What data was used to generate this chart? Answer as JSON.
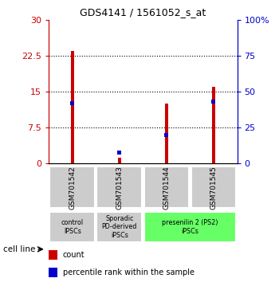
{
  "title": "GDS4141 / 1561052_s_at",
  "samples": [
    "GSM701542",
    "GSM701543",
    "GSM701544",
    "GSM701545"
  ],
  "count_values": [
    23.5,
    1.2,
    12.5,
    16.0
  ],
  "percentile_values": [
    42.0,
    7.5,
    20.0,
    43.0
  ],
  "left_ylim": [
    0,
    30
  ],
  "right_ylim": [
    0,
    100
  ],
  "left_yticks": [
    0,
    7.5,
    15,
    22.5,
    30
  ],
  "right_yticks": [
    0,
    25,
    50,
    75,
    100
  ],
  "left_yticklabels": [
    "0",
    "7.5",
    "15",
    "22.5",
    "30"
  ],
  "right_yticklabels": [
    "0",
    "25",
    "50",
    "75",
    "100%"
  ],
  "bar_width": 0.07,
  "count_color": "#cc0000",
  "percentile_color": "#0000cc",
  "bg_color": "#ffffff",
  "cell_line_groups": [
    {
      "label": "control\nIPSCs",
      "start": 0,
      "end": 0,
      "color": "#cccccc"
    },
    {
      "label": "Sporadic\nPD-derived\niPSCs",
      "start": 1,
      "end": 1,
      "color": "#cccccc"
    },
    {
      "label": "presenilin 2 (PS2)\niPSCs",
      "start": 2,
      "end": 3,
      "color": "#66ff66"
    }
  ],
  "legend_count_label": "count",
  "legend_pct_label": "percentile rank within the sample",
  "cell_line_text": "cell line",
  "left_axis_color": "#cc0000",
  "right_axis_color": "#0000cc",
  "blue_bar_height": 0.8
}
